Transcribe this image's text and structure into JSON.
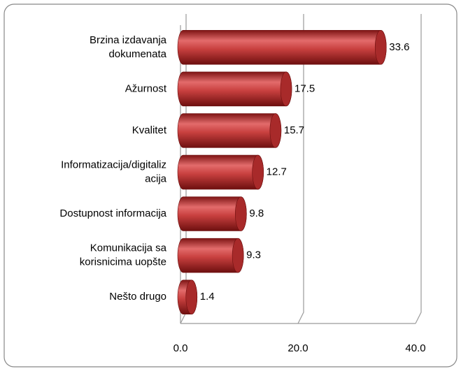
{
  "chart_data": {
    "type": "bar",
    "orientation": "horizontal",
    "categories": [
      "Brzina izdavanja\ndokumenata",
      "Ažurnost",
      "Kvalitet",
      "Informatizacija/digitaliz\nacija",
      "Dostupnost informacija",
      "Komunikacija sa\nkorisnicima uopšte",
      "Nešto drugo"
    ],
    "values": [
      33.6,
      17.5,
      15.7,
      12.7,
      9.8,
      9.3,
      1.4
    ],
    "color": "#c0393b",
    "xlim": [
      0,
      40
    ],
    "xticks": [
      {
        "value": 0,
        "label": "0.0"
      },
      {
        "value": 20,
        "label": "20.0"
      },
      {
        "value": 40,
        "label": "40.0"
      }
    ],
    "grid": true
  }
}
